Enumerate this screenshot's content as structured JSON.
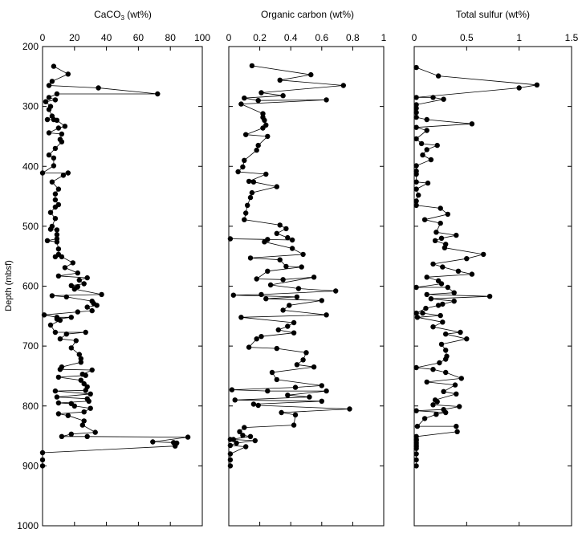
{
  "chart_data": [
    {
      "type": "line",
      "title_main": "CaCO",
      "title_sub": "3",
      "title_rest": " (wt%)",
      "xlim": [
        0,
        100
      ],
      "xticks": [
        "0",
        "20",
        "40",
        "60",
        "80",
        "100"
      ],
      "ylim": [
        200,
        1000
      ],
      "yticks": [
        "200",
        "300",
        "400",
        "500",
        "600",
        "700",
        "800",
        "900",
        "1000"
      ],
      "ylabel": "Depth (mbsf)",
      "y_inverted": true,
      "grid": false,
      "points": [
        [
          7,
          233
        ],
        [
          16,
          246
        ],
        [
          6,
          258
        ],
        [
          4,
          265
        ],
        [
          35,
          269
        ],
        [
          72,
          279
        ],
        [
          9,
          279
        ],
        [
          4,
          285
        ],
        [
          8,
          289
        ],
        [
          2,
          292
        ],
        [
          5,
          300
        ],
        [
          4,
          305
        ],
        [
          6,
          316
        ],
        [
          3,
          322
        ],
        [
          7,
          322
        ],
        [
          9,
          323
        ],
        [
          14,
          333
        ],
        [
          10,
          336
        ],
        [
          4,
          344
        ],
        [
          12,
          346
        ],
        [
          11,
          355
        ],
        [
          12,
          359
        ],
        [
          8,
          370
        ],
        [
          4,
          381
        ],
        [
          7,
          386
        ],
        [
          7,
          399
        ],
        [
          0,
          411
        ],
        [
          16,
          411
        ],
        [
          13,
          415
        ],
        [
          6,
          426
        ],
        [
          10,
          438
        ],
        [
          8,
          446
        ],
        [
          8,
          456
        ],
        [
          10,
          464
        ],
        [
          8,
          468
        ],
        [
          5,
          477
        ],
        [
          8,
          487
        ],
        [
          6,
          500
        ],
        [
          5,
          505
        ],
        [
          9,
          506
        ],
        [
          9,
          514
        ],
        [
          9,
          521
        ],
        [
          3,
          524
        ],
        [
          9,
          526
        ],
        [
          10,
          538
        ],
        [
          10,
          547
        ],
        [
          8,
          551
        ],
        [
          12,
          551
        ],
        [
          19,
          561
        ],
        [
          14,
          569
        ],
        [
          22,
          578
        ],
        [
          10,
          583
        ],
        [
          28,
          586
        ],
        [
          23,
          590
        ],
        [
          26,
          596
        ],
        [
          18,
          599
        ],
        [
          22,
          601
        ],
        [
          20,
          605
        ],
        [
          37,
          614
        ],
        [
          6,
          616
        ],
        [
          15,
          618
        ],
        [
          31,
          625
        ],
        [
          32,
          629
        ],
        [
          34,
          632
        ],
        [
          28,
          635
        ],
        [
          31,
          641
        ],
        [
          22,
          643
        ],
        [
          1,
          648
        ],
        [
          9,
          652
        ],
        [
          18,
          652
        ],
        [
          9,
          655
        ],
        [
          11,
          657
        ],
        [
          5,
          665
        ],
        [
          8,
          677
        ],
        [
          27,
          677
        ],
        [
          15,
          680
        ],
        [
          11,
          688
        ],
        [
          21,
          691
        ],
        [
          18,
          703
        ],
        [
          23,
          714
        ],
        [
          24,
          721
        ],
        [
          24,
          727
        ],
        [
          12,
          735
        ],
        [
          11,
          739
        ],
        [
          31,
          740
        ],
        [
          25,
          747
        ],
        [
          27,
          749
        ],
        [
          10,
          752
        ],
        [
          24,
          757
        ],
        [
          26,
          763
        ],
        [
          28,
          768
        ],
        [
          27,
          774
        ],
        [
          8,
          775
        ],
        [
          30,
          780
        ],
        [
          9,
          785
        ],
        [
          28,
          788
        ],
        [
          29,
          792
        ],
        [
          10,
          795
        ],
        [
          18,
          796
        ],
        [
          20,
          800
        ],
        [
          30,
          804
        ],
        [
          26,
          810
        ],
        [
          10,
          813
        ],
        [
          16,
          816
        ],
        [
          26,
          825
        ],
        [
          25,
          832
        ],
        [
          33,
          844
        ],
        [
          18,
          847
        ],
        [
          12,
          851
        ],
        [
          28,
          851
        ],
        [
          91,
          852
        ],
        [
          69,
          860
        ],
        [
          82,
          861
        ],
        [
          84,
          862
        ],
        [
          83,
          867
        ],
        [
          0,
          878
        ],
        [
          0,
          890
        ],
        [
          0,
          900
        ]
      ]
    },
    {
      "type": "line",
      "title": "Organic carbon (wt%)",
      "xlim": [
        0,
        1
      ],
      "xticks": [
        "0",
        "0.2",
        "0.4",
        "0.6",
        "0.8",
        "1"
      ],
      "ylim": [
        200,
        1000
      ],
      "y_inverted": true,
      "grid": false,
      "points": [
        [
          0.15,
          232
        ],
        [
          0.53,
          247
        ],
        [
          0.33,
          256
        ],
        [
          0.74,
          265
        ],
        [
          0.21,
          277
        ],
        [
          0.35,
          282
        ],
        [
          0.1,
          286
        ],
        [
          0.19,
          290
        ],
        [
          0.63,
          289
        ],
        [
          0.08,
          296
        ],
        [
          0.22,
          312
        ],
        [
          0.22,
          318
        ],
        [
          0.23,
          323
        ],
        [
          0.24,
          331
        ],
        [
          0.22,
          336
        ],
        [
          0.11,
          347
        ],
        [
          0.25,
          350
        ],
        [
          0.19,
          365
        ],
        [
          0.18,
          373
        ],
        [
          0.1,
          390
        ],
        [
          0.09,
          401
        ],
        [
          0.06,
          409
        ],
        [
          0.24,
          413
        ],
        [
          0.13,
          425
        ],
        [
          0.16,
          426
        ],
        [
          0.31,
          434
        ],
        [
          0.15,
          444
        ],
        [
          0.14,
          452
        ],
        [
          0.12,
          465
        ],
        [
          0.11,
          478
        ],
        [
          0.1,
          489
        ],
        [
          0.33,
          498
        ],
        [
          0.37,
          504
        ],
        [
          0.31,
          512
        ],
        [
          0.38,
          519
        ],
        [
          0.41,
          523
        ],
        [
          0.01,
          521
        ],
        [
          0.25,
          522
        ],
        [
          0.23,
          526
        ],
        [
          0.41,
          537
        ],
        [
          0.48,
          547
        ],
        [
          0.14,
          553
        ],
        [
          0.33,
          556
        ],
        [
          0.37,
          567
        ],
        [
          0.47,
          568
        ],
        [
          0.25,
          575
        ],
        [
          0.18,
          588
        ],
        [
          0.35,
          589
        ],
        [
          0.55,
          585
        ],
        [
          0.27,
          598
        ],
        [
          0.45,
          604
        ],
        [
          0.69,
          608
        ],
        [
          0.21,
          614
        ],
        [
          0.03,
          615
        ],
        [
          0.44,
          618
        ],
        [
          0.24,
          621
        ],
        [
          0.6,
          624
        ],
        [
          0.39,
          632
        ],
        [
          0.35,
          640
        ],
        [
          0.63,
          648
        ],
        [
          0.08,
          652
        ],
        [
          0.42,
          661
        ],
        [
          0.38,
          667
        ],
        [
          0.32,
          673
        ],
        [
          0.42,
          678
        ],
        [
          0.21,
          684
        ],
        [
          0.18,
          688
        ],
        [
          0.13,
          702
        ],
        [
          0.31,
          704
        ],
        [
          0.5,
          711
        ],
        [
          0.48,
          723
        ],
        [
          0.44,
          731
        ],
        [
          0.55,
          735
        ],
        [
          0.28,
          744
        ],
        [
          0.31,
          756
        ],
        [
          0.6,
          766
        ],
        [
          0.43,
          769
        ],
        [
          0.02,
          773
        ],
        [
          0.25,
          775
        ],
        [
          0.63,
          775
        ],
        [
          0.38,
          782
        ],
        [
          0.52,
          785
        ],
        [
          0.04,
          790
        ],
        [
          0.6,
          792
        ],
        [
          0.16,
          797
        ],
        [
          0.19,
          799
        ],
        [
          0.78,
          805
        ],
        [
          0.34,
          811
        ],
        [
          0.43,
          815
        ],
        [
          0.42,
          832
        ],
        [
          0.1,
          836
        ],
        [
          0.07,
          843
        ],
        [
          0.09,
          849
        ],
        [
          0.14,
          851
        ],
        [
          0.01,
          856
        ],
        [
          0.03,
          856
        ],
        [
          0.17,
          858
        ],
        [
          0.05,
          862
        ],
        [
          0.01,
          866
        ],
        [
          0.11,
          868
        ],
        [
          0.01,
          880
        ],
        [
          0.01,
          890
        ],
        [
          0.01,
          900
        ]
      ]
    },
    {
      "type": "line",
      "title": "Total sulfur (wt%)",
      "xlim": [
        0,
        1.5
      ],
      "xticks": [
        "0",
        "0.5",
        "1",
        "1.5"
      ],
      "ylim": [
        200,
        1000
      ],
      "y_inverted": true,
      "grid": false,
      "points": [
        [
          0.02,
          235
        ],
        [
          0.23,
          249
        ],
        [
          1.17,
          264
        ],
        [
          1.0,
          269
        ],
        [
          0.02,
          285
        ],
        [
          0.18,
          285
        ],
        [
          0.28,
          288
        ],
        [
          0.02,
          297
        ],
        [
          0.02,
          303
        ],
        [
          0.02,
          310
        ],
        [
          0.02,
          318
        ],
        [
          0.12,
          322
        ],
        [
          0.55,
          329
        ],
        [
          0.02,
          335
        ],
        [
          0.12,
          340
        ],
        [
          0.02,
          354
        ],
        [
          0.07,
          362
        ],
        [
          0.22,
          365
        ],
        [
          0.12,
          372
        ],
        [
          0.08,
          381
        ],
        [
          0.16,
          389
        ],
        [
          0.02,
          399
        ],
        [
          0.02,
          408
        ],
        [
          0.02,
          413
        ],
        [
          0.02,
          426
        ],
        [
          0.13,
          428
        ],
        [
          0.02,
          438
        ],
        [
          0.04,
          448
        ],
        [
          0.02,
          458
        ],
        [
          0.02,
          465
        ],
        [
          0.25,
          470
        ],
        [
          0.32,
          480
        ],
        [
          0.1,
          489
        ],
        [
          0.25,
          495
        ],
        [
          0.21,
          510
        ],
        [
          0.4,
          515
        ],
        [
          0.26,
          520
        ],
        [
          0.2,
          524
        ],
        [
          0.3,
          530
        ],
        [
          0.29,
          536
        ],
        [
          0.66,
          547
        ],
        [
          0.5,
          554
        ],
        [
          0.18,
          563
        ],
        [
          0.27,
          568
        ],
        [
          0.42,
          575
        ],
        [
          0.55,
          580
        ],
        [
          0.12,
          585
        ],
        [
          0.23,
          591
        ],
        [
          0.26,
          596
        ],
        [
          0.02,
          602
        ],
        [
          0.32,
          602
        ],
        [
          0.38,
          611
        ],
        [
          0.12,
          614
        ],
        [
          0.72,
          617
        ],
        [
          0.16,
          621
        ],
        [
          0.38,
          625
        ],
        [
          0.27,
          630
        ],
        [
          0.23,
          632
        ],
        [
          0.11,
          637
        ],
        [
          0.02,
          645
        ],
        [
          0.08,
          645
        ],
        [
          0.25,
          649
        ],
        [
          0.03,
          652
        ],
        [
          0.27,
          660
        ],
        [
          0.18,
          668
        ],
        [
          0.44,
          677
        ],
        [
          0.3,
          680
        ],
        [
          0.5,
          688
        ],
        [
          0.26,
          697
        ],
        [
          0.3,
          707
        ],
        [
          0.31,
          717
        ],
        [
          0.3,
          722
        ],
        [
          0.24,
          728
        ],
        [
          0.02,
          736
        ],
        [
          0.18,
          739
        ],
        [
          0.3,
          744
        ],
        [
          0.45,
          754
        ],
        [
          0.12,
          760
        ],
        [
          0.39,
          765
        ],
        [
          0.28,
          776
        ],
        [
          0.4,
          780
        ],
        [
          0.2,
          790
        ],
        [
          0.22,
          793
        ],
        [
          0.18,
          798
        ],
        [
          0.43,
          801
        ],
        [
          0.28,
          806
        ],
        [
          0.02,
          808
        ],
        [
          0.3,
          811
        ],
        [
          0.21,
          814
        ],
        [
          0.1,
          821
        ],
        [
          0.03,
          834
        ],
        [
          0.4,
          834
        ],
        [
          0.41,
          843
        ],
        [
          0.02,
          851
        ],
        [
          0.02,
          856
        ],
        [
          0.02,
          858
        ],
        [
          0.02,
          862
        ],
        [
          0.02,
          865
        ],
        [
          0.02,
          868
        ],
        [
          0.02,
          871
        ],
        [
          0.02,
          880
        ],
        [
          0.02,
          890
        ],
        [
          0.02,
          900
        ]
      ]
    }
  ]
}
